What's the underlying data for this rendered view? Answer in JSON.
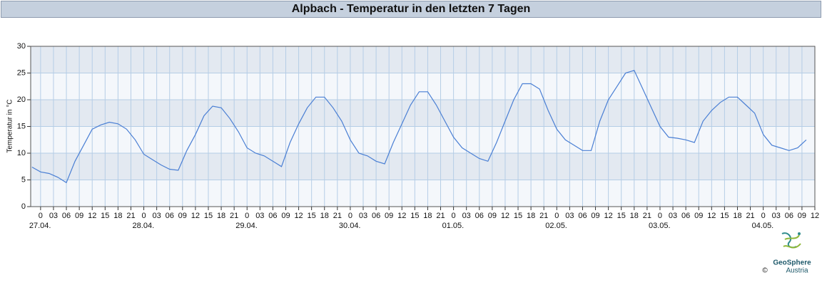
{
  "chart_data": {
    "type": "line",
    "title": "Alpbach - Temperatur in den letzten 7 Tagen",
    "ylabel": "Temperatur in °C",
    "color": "#4a7fd4",
    "xlim": [
      -2.3,
      180
    ],
    "ylim": [
      0,
      30
    ],
    "yticks": [
      0,
      5,
      10,
      15,
      20,
      25,
      30
    ],
    "grid": true,
    "xticks": [
      0,
      {
        "value": 3,
        "label": "03"
      },
      {
        "value": 6,
        "label": "06"
      },
      {
        "value": 9,
        "label": "09"
      },
      12,
      15,
      18,
      21,
      {
        "value": 24,
        "label": "0"
      },
      {
        "value": 27,
        "label": "03"
      },
      {
        "value": 30,
        "label": "06"
      },
      {
        "value": 33,
        "label": "09"
      },
      {
        "value": 36,
        "label": "12"
      },
      {
        "value": 39,
        "label": "15"
      },
      {
        "value": 42,
        "label": "18"
      },
      {
        "value": 45,
        "label": "21"
      },
      {
        "value": 48,
        "label": "0"
      },
      {
        "value": 51,
        "label": "03"
      },
      {
        "value": 54,
        "label": "06"
      },
      {
        "value": 57,
        "label": "09"
      },
      {
        "value": 60,
        "label": "12"
      },
      {
        "value": 63,
        "label": "15"
      },
      {
        "value": 66,
        "label": "18"
      },
      {
        "value": 69,
        "label": "21"
      },
      {
        "value": 72,
        "label": "0"
      },
      {
        "value": 75,
        "label": "03"
      },
      {
        "value": 78,
        "label": "06"
      },
      {
        "value": 81,
        "label": "09"
      },
      {
        "value": 84,
        "label": "12"
      },
      {
        "value": 87,
        "label": "15"
      },
      {
        "value": 90,
        "label": "18"
      },
      {
        "value": 93,
        "label": "21"
      },
      {
        "value": 96,
        "label": "0"
      },
      {
        "value": 99,
        "label": "03"
      },
      {
        "value": 102,
        "label": "06"
      },
      {
        "value": 105,
        "label": "09"
      },
      {
        "value": 108,
        "label": "12"
      },
      {
        "value": 111,
        "label": "15"
      },
      {
        "value": 114,
        "label": "18"
      },
      {
        "value": 117,
        "label": "21"
      },
      {
        "value": 120,
        "label": "0"
      },
      {
        "value": 123,
        "label": "03"
      },
      {
        "value": 126,
        "label": "06"
      },
      {
        "value": 129,
        "label": "09"
      },
      {
        "value": 132,
        "label": "12"
      },
      {
        "value": 135,
        "label": "15"
      },
      {
        "value": 138,
        "label": "18"
      },
      {
        "value": 141,
        "label": "21"
      },
      {
        "value": 144,
        "label": "0"
      },
      {
        "value": 147,
        "label": "03"
      },
      {
        "value": 150,
        "label": "06"
      },
      {
        "value": 153,
        "label": "09"
      },
      {
        "value": 156,
        "label": "12"
      },
      {
        "value": 159,
        "label": "15"
      },
      {
        "value": 162,
        "label": "18"
      },
      {
        "value": 165,
        "label": "21"
      },
      {
        "value": 168,
        "label": "0"
      },
      {
        "value": 171,
        "label": "03"
      },
      {
        "value": 174,
        "label": "06"
      },
      {
        "value": 177,
        "label": "09"
      },
      {
        "value": 180,
        "label": "12"
      }
    ],
    "day_labels": [
      {
        "value": 0,
        "label": "27.04."
      },
      {
        "value": 24,
        "label": "28.04."
      },
      {
        "value": 48,
        "label": "29.04."
      },
      {
        "value": 72,
        "label": "30.04."
      },
      {
        "value": 96,
        "label": "01.05."
      },
      {
        "value": 120,
        "label": "02.05."
      },
      {
        "value": 144,
        "label": "03.05."
      },
      {
        "value": 168,
        "label": "04.05."
      }
    ],
    "x": [
      -2,
      0,
      2,
      4,
      6,
      8,
      10,
      12,
      14,
      16,
      18,
      20,
      22,
      24,
      26,
      28,
      30,
      32,
      34,
      36,
      38,
      40,
      42,
      44,
      46,
      48,
      50,
      52,
      54,
      56,
      58,
      60,
      62,
      64,
      66,
      68,
      70,
      72,
      74,
      76,
      78,
      80,
      82,
      84,
      86,
      88,
      90,
      92,
      94,
      96,
      98,
      100,
      102,
      104,
      106,
      108,
      110,
      112,
      114,
      116,
      118,
      120,
      122,
      124,
      126,
      128,
      130,
      132,
      134,
      136,
      138,
      140,
      142,
      144,
      146,
      148,
      150,
      152,
      154,
      156,
      158,
      160,
      162,
      164,
      166,
      168,
      170,
      172,
      174,
      176,
      178
    ],
    "values": [
      7.4,
      6.5,
      6.2,
      5.5,
      4.5,
      8.5,
      11.5,
      14.5,
      15.3,
      15.8,
      15.5,
      14.5,
      12.5,
      9.8,
      8.8,
      7.8,
      7,
      6.8,
      10.5,
      13.5,
      17,
      18.8,
      18.5,
      16.5,
      14,
      11,
      10,
      9.5,
      8.5,
      7.5,
      12,
      15.5,
      18.5,
      20.5,
      20.5,
      18.5,
      16,
      12.5,
      10,
      9.5,
      8.5,
      8,
      12,
      15.5,
      19,
      21.5,
      21.5,
      19,
      16,
      13,
      11,
      10,
      9,
      8.5,
      12,
      16,
      20,
      23,
      23,
      22,
      18,
      14.5,
      12.5,
      11.5,
      10.5,
      10.5,
      16,
      20,
      22.5,
      25,
      25.5,
      22,
      18.5,
      15,
      13,
      12.8,
      12.5,
      12,
      16,
      18,
      19.5,
      20.5,
      20.5,
      19,
      17.5,
      13.5,
      11.5,
      11,
      10.5,
      11,
      12.5
    ]
  },
  "logo": {
    "name": "GeoSphere",
    "sub": "Austria",
    "copyright": "©"
  }
}
